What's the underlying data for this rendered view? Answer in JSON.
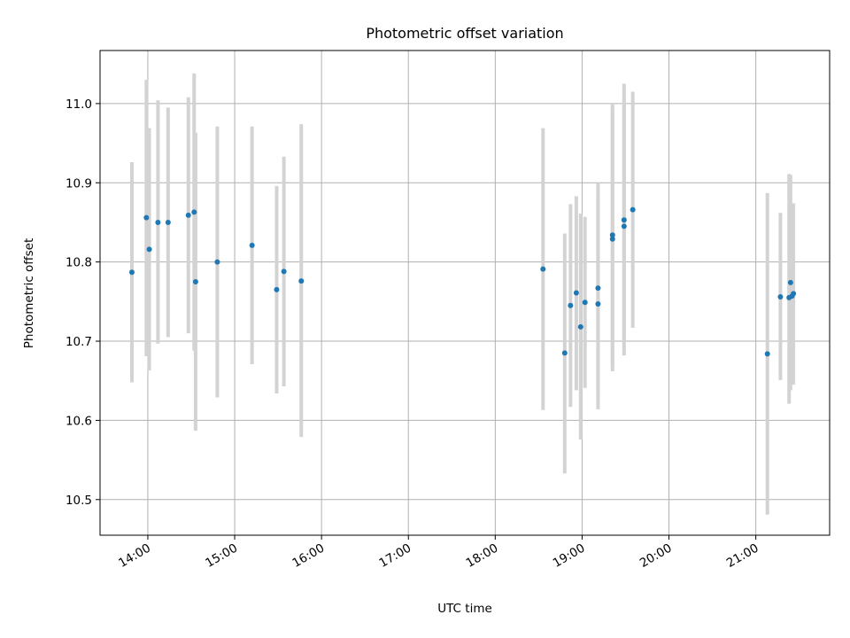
{
  "chart_data": {
    "type": "scatter",
    "title": "Photometric offset variation",
    "xlabel": "UTC time",
    "ylabel": "Photometric offset",
    "xlim": [
      "13:27",
      "21:51"
    ],
    "ylim": [
      10.455,
      11.067
    ],
    "x_ticks": [
      "14:00",
      "15:00",
      "16:00",
      "17:00",
      "18:00",
      "19:00",
      "20:00",
      "21:00"
    ],
    "y_ticks": [
      "10.5",
      "10.6",
      "10.7",
      "10.8",
      "10.9",
      "11.0"
    ],
    "grid": true,
    "colors": {
      "point": "#1f77b4",
      "errorbar": "#d3d3d3",
      "grid": "#b0b0b0"
    },
    "series": [
      {
        "points": [
          {
            "x": "13:49",
            "y": 10.787,
            "ylo": 10.648,
            "yhi": 10.926
          },
          {
            "x": "13:59",
            "y": 10.856,
            "ylo": 10.681,
            "yhi": 11.03
          },
          {
            "x": "14:01",
            "y": 10.816,
            "ylo": 10.663,
            "yhi": 10.969
          },
          {
            "x": "14:07",
            "y": 10.85,
            "ylo": 10.697,
            "yhi": 11.004
          },
          {
            "x": "14:14",
            "y": 10.85,
            "ylo": 10.705,
            "yhi": 10.995
          },
          {
            "x": "14:28",
            "y": 10.859,
            "ylo": 10.71,
            "yhi": 11.008
          },
          {
            "x": "14:32",
            "y": 10.863,
            "ylo": 10.688,
            "yhi": 11.038
          },
          {
            "x": "14:33",
            "y": 10.775,
            "ylo": 10.587,
            "yhi": 10.963
          },
          {
            "x": "14:48",
            "y": 10.8,
            "ylo": 10.629,
            "yhi": 10.971
          },
          {
            "x": "15:12",
            "y": 10.821,
            "ylo": 10.671,
            "yhi": 10.971
          },
          {
            "x": "15:29",
            "y": 10.765,
            "ylo": 10.634,
            "yhi": 10.896
          },
          {
            "x": "15:34",
            "y": 10.788,
            "ylo": 10.643,
            "yhi": 10.933
          },
          {
            "x": "15:46",
            "y": 10.776,
            "ylo": 10.579,
            "yhi": 10.974
          },
          {
            "x": "18:33",
            "y": 10.791,
            "ylo": 10.613,
            "yhi": 10.969
          },
          {
            "x": "18:48",
            "y": 10.685,
            "ylo": 10.533,
            "yhi": 10.836
          },
          {
            "x": "18:52",
            "y": 10.745,
            "ylo": 10.617,
            "yhi": 10.873
          },
          {
            "x": "18:56",
            "y": 10.761,
            "ylo": 10.638,
            "yhi": 10.883
          },
          {
            "x": "18:59",
            "y": 10.718,
            "ylo": 10.576,
            "yhi": 10.861
          },
          {
            "x": "19:02",
            "y": 10.749,
            "ylo": 10.641,
            "yhi": 10.857
          },
          {
            "x": "19:11",
            "y": 10.767,
            "ylo": 10.634,
            "yhi": 10.9
          },
          {
            "x": "19:11",
            "y": 10.747,
            "ylo": 10.614,
            "yhi": 10.88
          },
          {
            "x": "19:21",
            "y": 10.834,
            "ylo": 10.668,
            "yhi": 11.0
          },
          {
            "x": "19:21",
            "y": 10.829,
            "ylo": 10.662,
            "yhi": 10.996
          },
          {
            "x": "19:29",
            "y": 10.853,
            "ylo": 10.705,
            "yhi": 11.001
          },
          {
            "x": "19:29",
            "y": 10.845,
            "ylo": 10.682,
            "yhi": 11.025
          },
          {
            "x": "19:35",
            "y": 10.866,
            "ylo": 10.717,
            "yhi": 11.015
          },
          {
            "x": "21:08",
            "y": 10.684,
            "ylo": 10.481,
            "yhi": 10.887
          },
          {
            "x": "21:17",
            "y": 10.756,
            "ylo": 10.651,
            "yhi": 10.862
          },
          {
            "x": "21:23",
            "y": 10.755,
            "ylo": 10.621,
            "yhi": 10.911
          },
          {
            "x": "21:24",
            "y": 10.774,
            "ylo": 10.638,
            "yhi": 10.91
          },
          {
            "x": "21:25",
            "y": 10.757,
            "ylo": 10.645,
            "yhi": 10.874
          },
          {
            "x": "21:26",
            "y": 10.76,
            "ylo": 10.645,
            "yhi": 10.874
          }
        ]
      }
    ]
  }
}
